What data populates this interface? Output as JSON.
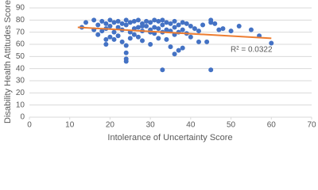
{
  "chart_data": {
    "type": "scatter",
    "x_label": "Intolerance of Uncertainty Score",
    "y_label": "Disability Health Attitudes Score",
    "annotation": "R² = 0.0322",
    "series": [
      {
        "color": "#4472c4",
        "x": [
          13,
          14,
          16,
          16,
          17,
          17,
          18,
          18,
          19,
          19,
          19,
          20,
          20,
          20,
          21,
          21,
          21,
          22,
          22,
          22,
          23,
          23,
          23,
          24,
          24,
          24,
          24,
          25,
          25,
          25,
          26,
          26,
          26,
          27,
          27,
          27,
          28,
          28,
          28,
          29,
          29,
          30,
          30,
          30,
          31,
          31,
          31,
          32,
          32,
          32,
          33,
          33,
          33,
          34,
          34,
          34,
          35,
          35,
          35,
          36,
          36,
          36,
          37,
          37,
          37,
          38,
          38,
          38,
          39,
          39,
          40,
          40,
          41,
          42,
          42,
          43,
          44,
          45,
          45,
          46,
          47,
          48,
          50,
          52,
          55,
          57,
          60,
          24,
          24,
          33,
          45,
          36,
          19,
          30,
          28
        ],
        "values": [
          74,
          78,
          80,
          72,
          76,
          68,
          79,
          71,
          77,
          60,
          73,
          80,
          75,
          66,
          78,
          70,
          64,
          79,
          74,
          67,
          77,
          72,
          62,
          80,
          76,
          48,
          46,
          78,
          70,
          65,
          79,
          73,
          68,
          80,
          74,
          66,
          77,
          71,
          63,
          79,
          75,
          78,
          72,
          60,
          80,
          74,
          69,
          79,
          73,
          65,
          80,
          76,
          39,
          78,
          72,
          64,
          77,
          71,
          58,
          79,
          74,
          52,
          76,
          70,
          55,
          78,
          72,
          57,
          77,
          69,
          75,
          66,
          73,
          62,
          71,
          76,
          62,
          39,
          78,
          77,
          72,
          73,
          71,
          75,
          72,
          67,
          61,
          53,
          59,
          70,
          80,
          68,
          64,
          70,
          75
        ]
      }
    ],
    "trendline": {
      "color": "#ed7d31",
      "x": [
        12,
        60
      ],
      "values": [
        74,
        65
      ]
    },
    "xlim": [
      0,
      70
    ],
    "xticks": [
      0,
      10,
      20,
      30,
      40,
      50,
      60,
      70
    ],
    "ylim": [
      0,
      90
    ],
    "yticks": [
      0,
      10,
      20,
      30,
      40,
      50,
      60,
      70,
      80,
      90
    ],
    "grid": true
  }
}
